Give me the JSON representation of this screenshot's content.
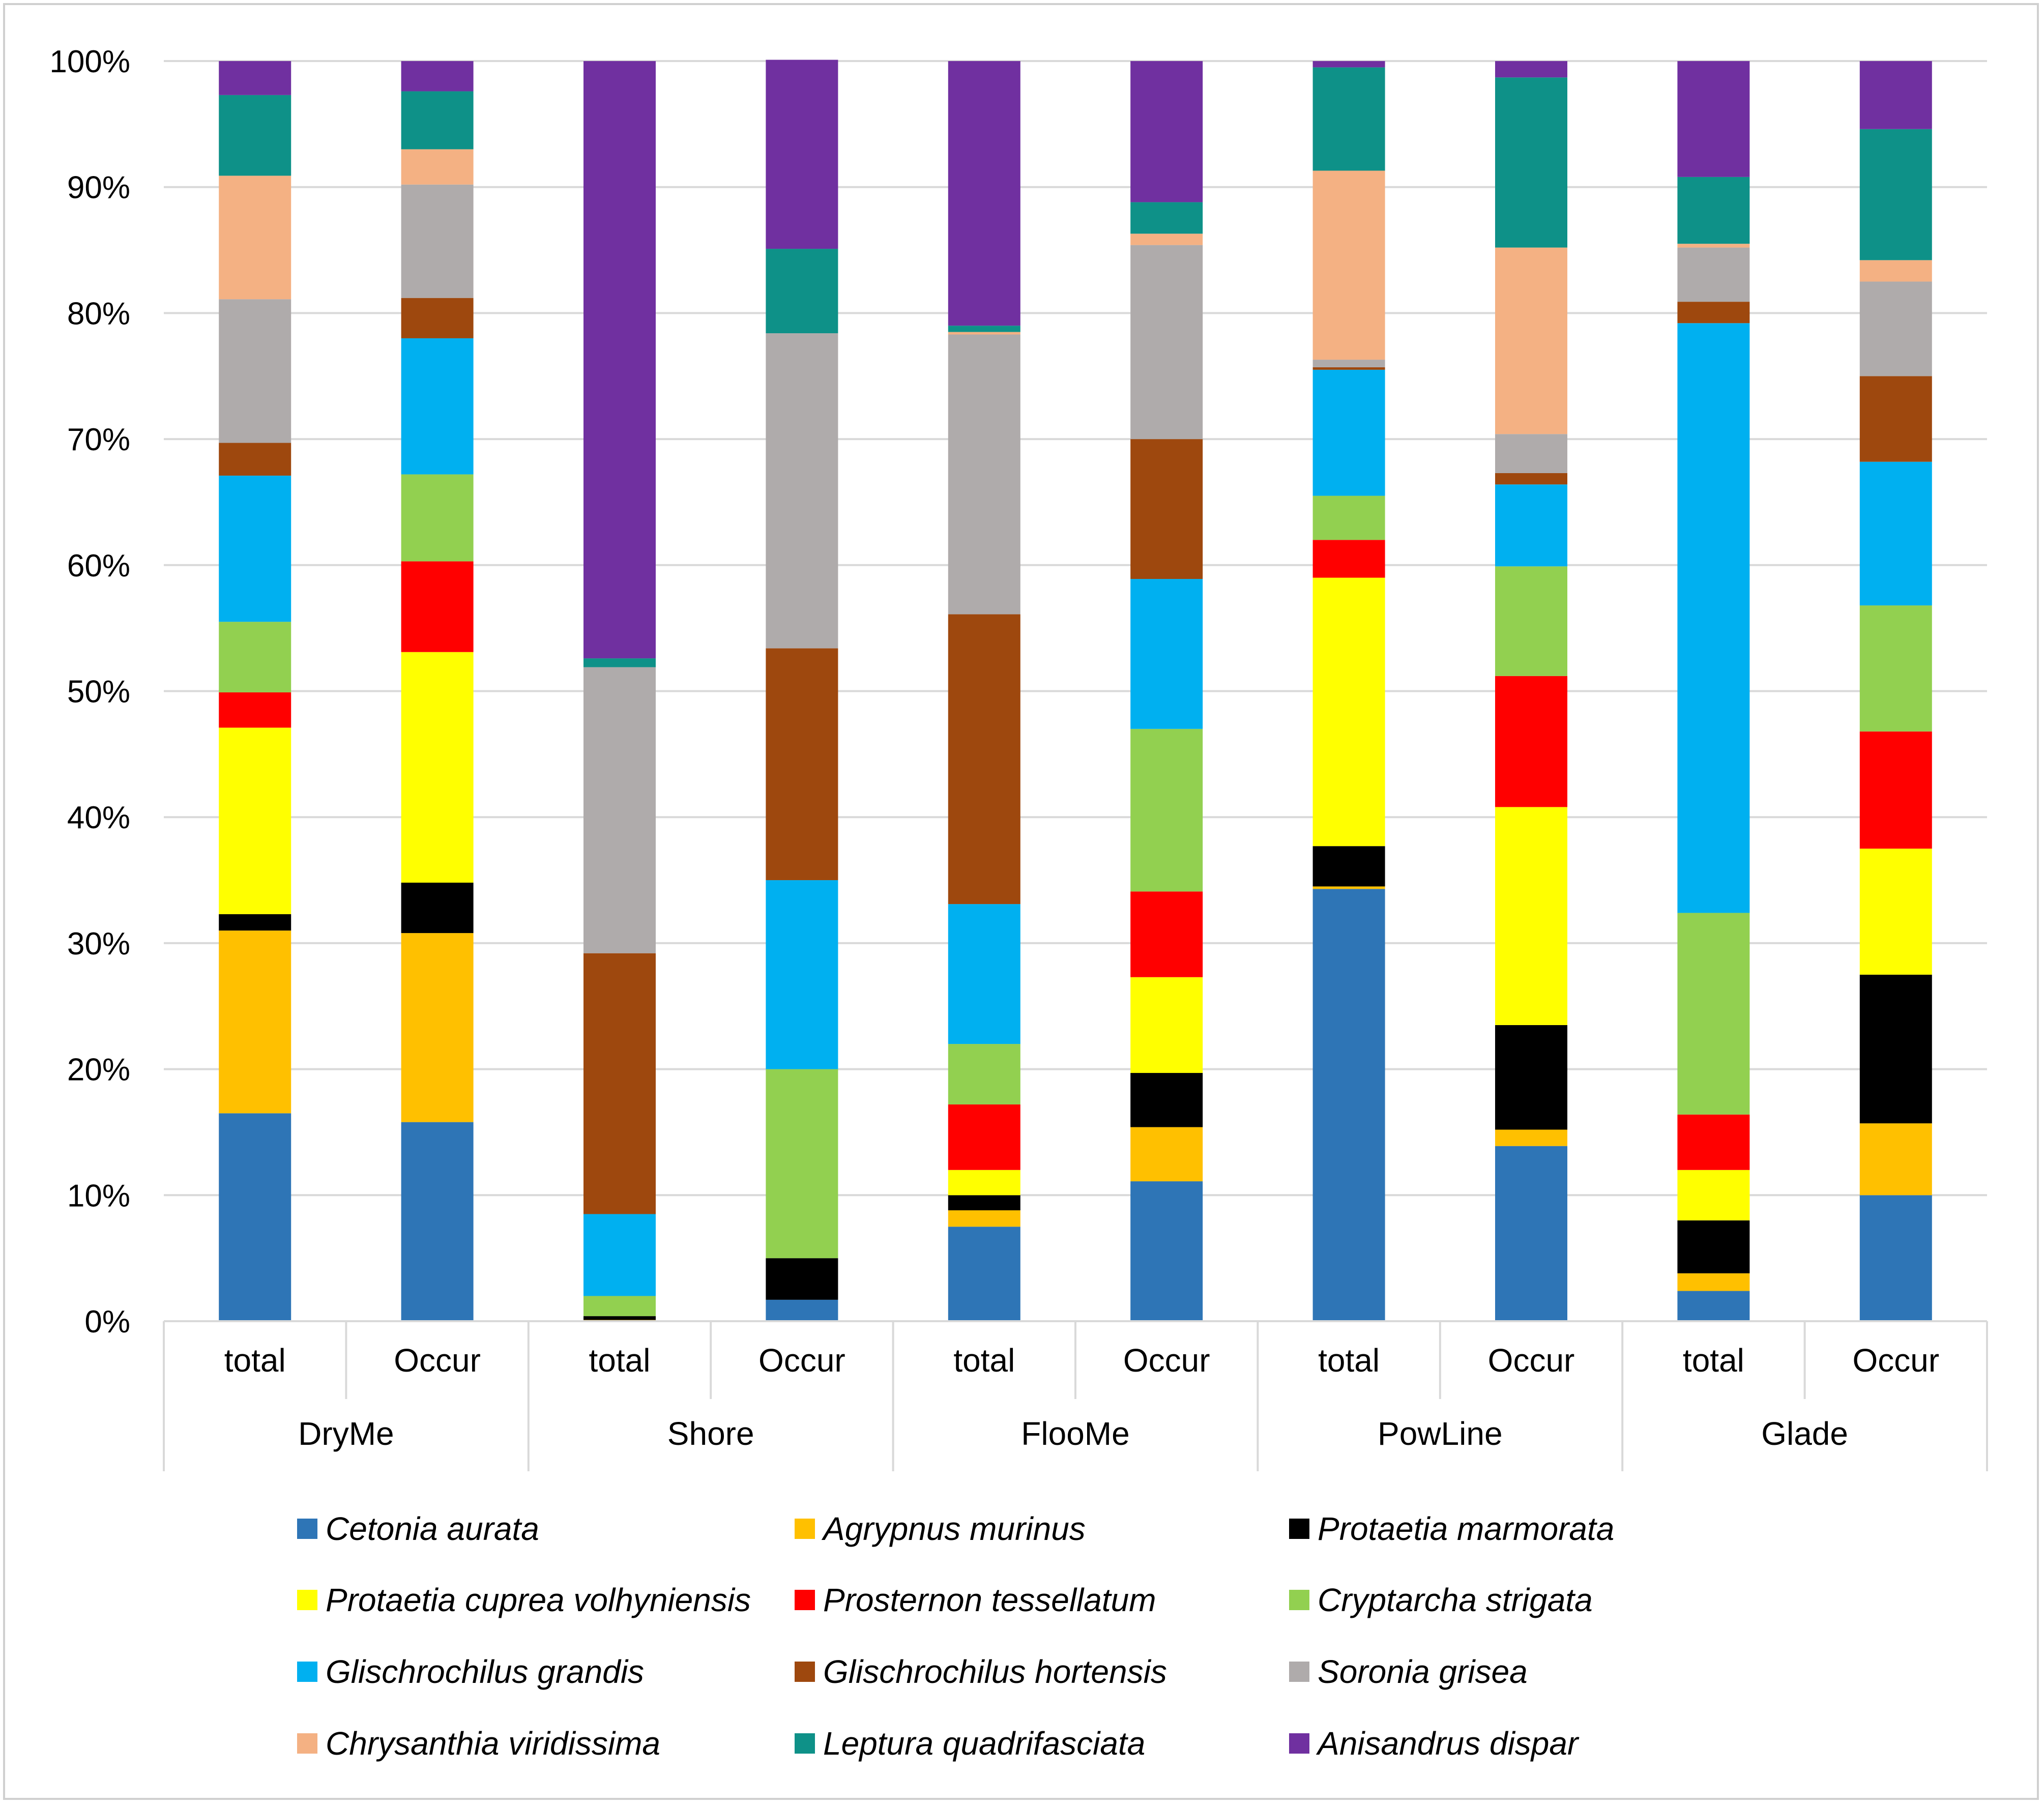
{
  "chart_data": {
    "type": "bar",
    "stacked": "percent",
    "title": "",
    "xlabel": "",
    "ylabel": "",
    "ylim": [
      0,
      100
    ],
    "y_ticks": [
      "0%",
      "10%",
      "20%",
      "30%",
      "40%",
      "50%",
      "60%",
      "70%",
      "80%",
      "90%",
      "100%"
    ],
    "grid": true,
    "legend_position": "bottom",
    "groups": [
      "DryMe",
      "Shore",
      "FlooMe",
      "PowLine",
      "Glade"
    ],
    "categories": [
      "total",
      "Occur",
      "total",
      "Occur",
      "total",
      "Occur",
      "total",
      "Occur",
      "total",
      "Occur"
    ],
    "series": [
      {
        "name": "Cetonia aurata",
        "color": "#2E75B6",
        "values": [
          16.5,
          15.8,
          0.0,
          1.7,
          7.5,
          11.1,
          34.3,
          13.9,
          2.4,
          10.0
        ]
      },
      {
        "name": "Agrypnus murinus",
        "color": "#FFC000",
        "values": [
          14.5,
          15.0,
          0.1,
          0.0,
          1.3,
          4.3,
          0.2,
          1.3,
          1.4,
          5.7
        ]
      },
      {
        "name": "Protaetia marmorata",
        "color": "#000000",
        "values": [
          1.3,
          4.0,
          0.3,
          3.3,
          1.2,
          4.3,
          3.2,
          8.3,
          4.2,
          11.8
        ]
      },
      {
        "name": "Protaetia cuprea volhyniensis",
        "color": "#FFFF00",
        "values": [
          14.8,
          18.3,
          0.0,
          0.0,
          2.0,
          7.6,
          21.3,
          17.3,
          4.0,
          10.0
        ]
      },
      {
        "name": "Prosternon tessellatum",
        "color": "#FF0000",
        "values": [
          2.8,
          7.2,
          0.0,
          0.0,
          5.2,
          6.8,
          3.0,
          10.4,
          4.4,
          9.3
        ]
      },
      {
        "name": "Cryptarcha strigata",
        "color": "#92D050",
        "values": [
          5.6,
          6.9,
          1.6,
          15.0,
          4.8,
          12.9,
          3.5,
          8.7,
          16.0,
          10.0
        ]
      },
      {
        "name": "Glischrochilus grandis",
        "color": "#00B0F0",
        "values": [
          11.6,
          10.8,
          6.5,
          15.0,
          11.1,
          11.9,
          10.0,
          6.5,
          46.8,
          11.4
        ]
      },
      {
        "name": "Glischrochilus hortensis",
        "color": "#9E480E",
        "values": [
          2.6,
          3.2,
          20.7,
          18.4,
          23.0,
          11.1,
          0.2,
          0.9,
          1.7,
          6.8
        ]
      },
      {
        "name": "Soronia grisea",
        "color": "#AFABAB",
        "values": [
          11.4,
          9.0,
          22.7,
          25.0,
          22.2,
          15.4,
          0.6,
          3.1,
          4.3,
          7.5
        ]
      },
      {
        "name": "Chrysanthia viridissima",
        "color": "#F4B183",
        "values": [
          9.8,
          2.8,
          0.0,
          0.0,
          0.2,
          0.9,
          15.0,
          14.8,
          0.3,
          1.7
        ]
      },
      {
        "name": "Leptura quadrifasciata",
        "color": "#0E9188",
        "values": [
          6.4,
          4.6,
          0.7,
          6.7,
          0.5,
          2.5,
          8.2,
          13.5,
          5.3,
          10.4
        ]
      },
      {
        "name": "Anisandrus dispar",
        "color": "#7030A0",
        "values": [
          2.7,
          2.4,
          47.4,
          15.0,
          21.0,
          11.2,
          0.5,
          1.3,
          9.2,
          5.4
        ]
      }
    ]
  }
}
